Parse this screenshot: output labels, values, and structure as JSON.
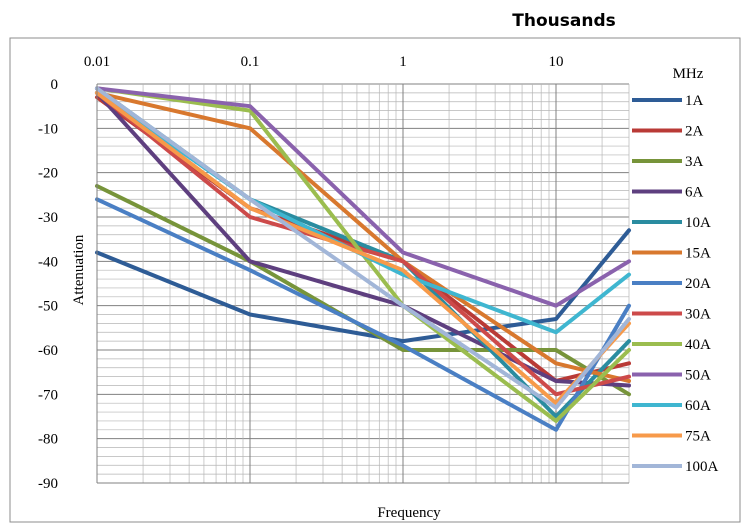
{
  "chart_data": {
    "type": "line",
    "title": "Thousands",
    "xlabel": "Frequency",
    "ylabel": "Attenuation",
    "x_unit_label": "MHz",
    "x_scale": "log",
    "x_ticks": [
      0.01,
      0.1,
      1,
      10
    ],
    "x_tick_labels": [
      "0.01",
      "0.1",
      "1",
      "10"
    ],
    "xlim": [
      0.01,
      30
    ],
    "ylim": [
      -90,
      0
    ],
    "y_ticks": [
      0,
      -10,
      -20,
      -30,
      -40,
      -50,
      -60,
      -70,
      -80,
      -90
    ],
    "y_tick_labels": [
      "0",
      "-10",
      "-20",
      "-30",
      "-40",
      "-50",
      "-60",
      "-70",
      "-80",
      "-90"
    ],
    "grid": true,
    "legend_position": "right",
    "x": [
      0.01,
      0.1,
      1,
      10,
      30
    ],
    "series": [
      {
        "name": "1A",
        "color": "#2e5c96",
        "values": [
          -38,
          -52,
          -58,
          -53,
          -33
        ]
      },
      {
        "name": "2A",
        "color": "#b93a36",
        "values": [
          -3,
          -28,
          -40,
          -67,
          -63
        ]
      },
      {
        "name": "3A",
        "color": "#77943a",
        "values": [
          -23,
          -40,
          -60,
          -60,
          -70
        ]
      },
      {
        "name": "6A",
        "color": "#5e3f7f",
        "values": [
          -2,
          -40,
          -50,
          -67,
          -68
        ]
      },
      {
        "name": "10A",
        "color": "#2a8ca0",
        "values": [
          -1,
          -26,
          -40,
          -75,
          -58
        ]
      },
      {
        "name": "15A",
        "color": "#d8782e",
        "values": [
          -2,
          -10,
          -40,
          -63,
          -67
        ]
      },
      {
        "name": "20A",
        "color": "#4a7fc4",
        "values": [
          -26,
          -42,
          -59,
          -78,
          -50
        ]
      },
      {
        "name": "30A",
        "color": "#cd4a4a",
        "values": [
          -2,
          -30,
          -40,
          -70,
          -66
        ]
      },
      {
        "name": "40A",
        "color": "#9bbd4f",
        "values": [
          -1,
          -6,
          -50,
          -76,
          -60
        ]
      },
      {
        "name": "50A",
        "color": "#8a62ad",
        "values": [
          -1,
          -5,
          -38,
          -50,
          -40
        ]
      },
      {
        "name": "60A",
        "color": "#3fb6d0",
        "values": [
          -2,
          -26,
          -43,
          -56,
          -43
        ]
      },
      {
        "name": "75A",
        "color": "#f79a4a",
        "values": [
          -2,
          -28,
          -42,
          -72,
          -54
        ]
      },
      {
        "name": "100A",
        "color": "#a2b6d8",
        "values": [
          -1,
          -26,
          -50,
          -73,
          -53
        ]
      }
    ]
  }
}
